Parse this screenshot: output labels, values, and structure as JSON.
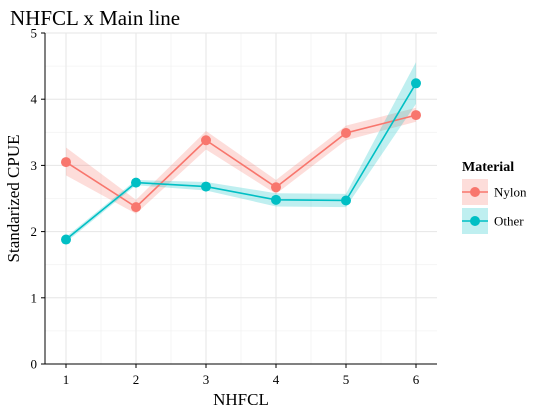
{
  "chart_data": {
    "type": "line",
    "title": "NHFCL x Main line",
    "xlabel": "NHFCL",
    "ylabel": "Standarized CPUE",
    "x": [
      1,
      2,
      3,
      4,
      5,
      6
    ],
    "xlim": [
      0.7,
      6.3
    ],
    "ylim": [
      0,
      5
    ],
    "xticks": [
      "1",
      "2",
      "3",
      "4",
      "5",
      "6"
    ],
    "yticks": [
      "0",
      "1",
      "2",
      "3",
      "4",
      "5"
    ],
    "grid": true,
    "legend": {
      "title": "Material",
      "position": "right"
    },
    "series": [
      {
        "name": "Nylon",
        "color": "#F8766D",
        "values": [
          3.05,
          2.37,
          3.38,
          2.67,
          3.49,
          3.76
        ],
        "lower": [
          2.85,
          2.27,
          3.24,
          2.57,
          3.38,
          3.66
        ],
        "upper": [
          3.27,
          2.48,
          3.52,
          2.78,
          3.6,
          3.87
        ]
      },
      {
        "name": "Other",
        "color": "#00BFC4",
        "values": [
          1.88,
          2.74,
          2.68,
          2.48,
          2.47,
          4.24
        ],
        "lower": [
          1.84,
          2.7,
          2.62,
          2.38,
          2.37,
          3.93
        ],
        "upper": [
          1.92,
          2.78,
          2.75,
          2.58,
          2.57,
          4.56
        ]
      }
    ]
  }
}
